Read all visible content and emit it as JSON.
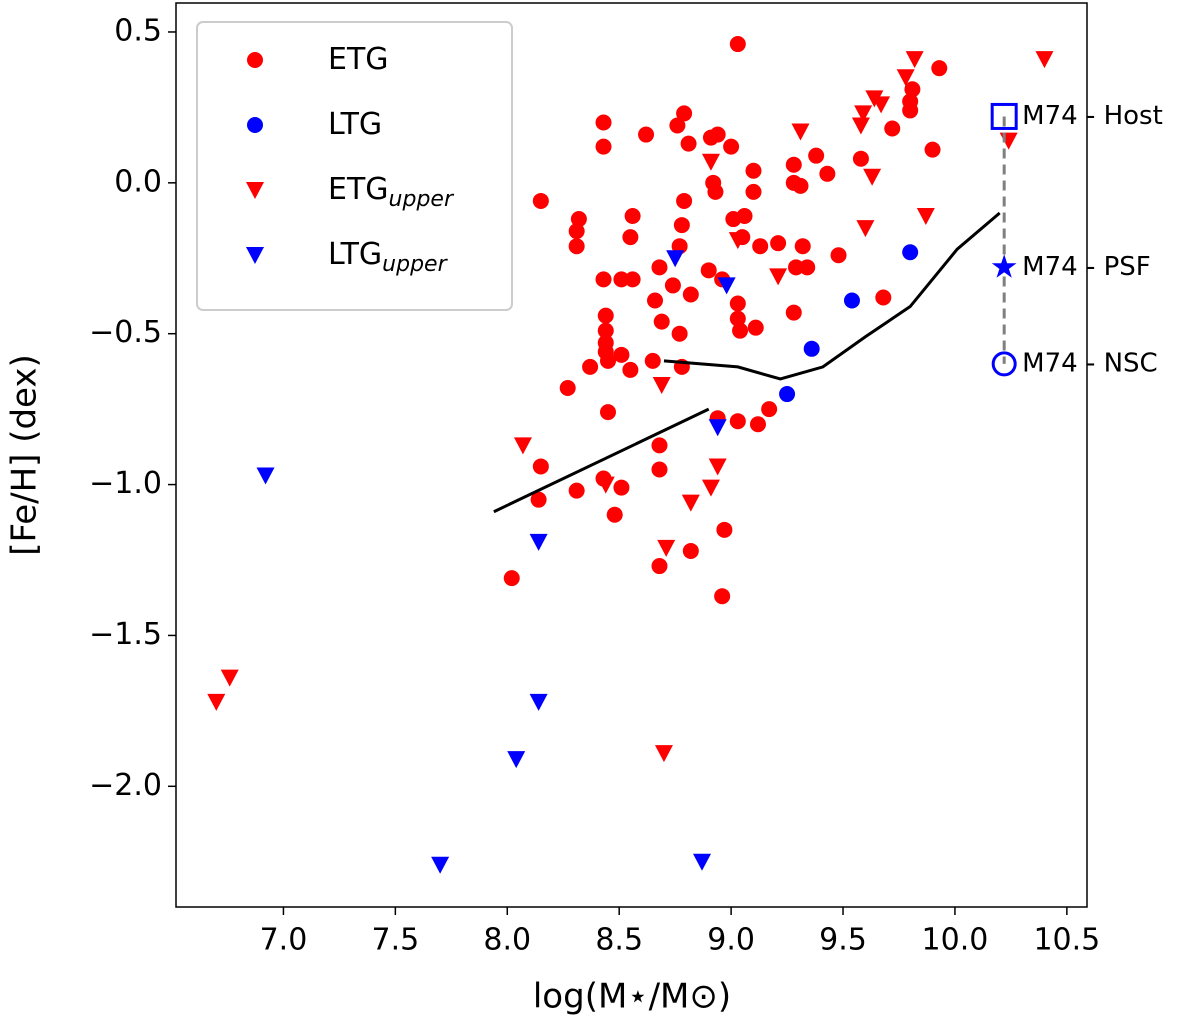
{
  "chart_data": {
    "type": "scatter",
    "xlabel": "log(M⋆/M⊙)",
    "ylabel": "[Fe/H] (dex)",
    "xlim": [
      6.52,
      10.59
    ],
    "ylim": [
      -2.4,
      0.596
    ],
    "xticks": [
      {
        "value": 7.0,
        "label": "7.0"
      },
      7.5,
      {
        "value": 8.0,
        "label": "8.0"
      },
      8.5,
      {
        "value": 9.0,
        "label": "9.0"
      },
      9.5,
      {
        "value": 10.0,
        "label": "10.0"
      },
      10.5
    ],
    "yticks": [
      0.5,
      {
        "value": 0.0,
        "label": "0.0"
      },
      {
        "value": -0.5,
        "label": "−0.5"
      },
      {
        "value": -1.0,
        "label": "−1.0"
      },
      {
        "value": -1.5,
        "label": "−1.5"
      },
      {
        "value": -2.0,
        "label": "−2.0"
      }
    ],
    "legend": "upper left",
    "series": [
      {
        "name": "ETG",
        "color": "#ff0000",
        "marker": "circle",
        "x": [
          9.03,
          9.93,
          8.43,
          8.43,
          8.62,
          8.79,
          8.76,
          8.81,
          8.91,
          8.94,
          9.0,
          8.92,
          8.93,
          9.1,
          9.1,
          9.38,
          9.28,
          9.28,
          9.31,
          9.43,
          9.58,
          9.72,
          9.8,
          9.8,
          9.81,
          9.9,
          8.15,
          8.32,
          8.31,
          8.31,
          8.56,
          8.55,
          8.79,
          8.78,
          8.77,
          8.56,
          8.43,
          8.51,
          8.68,
          8.74,
          8.9,
          8.96,
          9.01,
          9.06,
          9.05,
          9.21,
          9.13,
          9.32,
          9.29,
          9.34,
          9.48,
          9.03,
          9.03,
          9.04,
          9.11,
          9.28,
          8.82,
          8.66,
          8.69,
          8.77,
          8.44,
          8.44,
          8.44,
          8.44,
          8.45,
          8.37,
          8.55,
          8.65,
          8.78,
          8.51,
          8.27,
          8.45,
          9.68,
          9.17,
          9.12,
          9.03,
          8.94,
          8.68,
          8.68,
          8.15,
          8.31,
          8.14,
          8.43,
          8.51,
          8.48,
          8.97,
          8.82,
          8.68,
          8.02,
          8.96
        ],
        "values": [
          0.46,
          0.38,
          0.2,
          0.12,
          0.16,
          0.23,
          0.19,
          0.13,
          0.15,
          0.16,
          0.12,
          0.0,
          -0.03,
          0.04,
          -0.03,
          0.09,
          0.06,
          0.0,
          -0.01,
          0.03,
          0.08,
          0.18,
          0.24,
          0.27,
          0.31,
          0.11,
          -0.06,
          -0.12,
          -0.16,
          -0.21,
          -0.11,
          -0.18,
          -0.06,
          -0.14,
          -0.21,
          -0.32,
          -0.32,
          -0.32,
          -0.28,
          -0.34,
          -0.29,
          -0.32,
          -0.12,
          -0.11,
          -0.18,
          -0.2,
          -0.21,
          -0.21,
          -0.28,
          -0.28,
          -0.24,
          -0.4,
          -0.45,
          -0.49,
          -0.48,
          -0.43,
          -0.37,
          -0.39,
          -0.46,
          -0.5,
          -0.44,
          -0.49,
          -0.53,
          -0.56,
          -0.59,
          -0.61,
          -0.62,
          -0.59,
          -0.61,
          -0.57,
          -0.68,
          -0.76,
          -0.38,
          -0.75,
          -0.8,
          -0.79,
          -0.78,
          -0.87,
          -0.95,
          -0.94,
          -1.02,
          -1.05,
          -0.98,
          -1.01,
          -1.1,
          -1.15,
          -1.22,
          -1.27,
          -1.31,
          -1.37
        ]
      },
      {
        "name": "LTG",
        "color": "#0000ff",
        "marker": "circle",
        "x": [
          9.8,
          9.54,
          9.36,
          9.25
        ],
        "values": [
          -0.23,
          -0.39,
          -0.55,
          -0.7
        ]
      },
      {
        "name": "ETG",
        "subscript": "upper",
        "color": "#ff0000",
        "marker": "triangle-down",
        "x": [
          10.4,
          9.82,
          9.78,
          9.64,
          9.67,
          9.59,
          9.58,
          9.31,
          8.91,
          9.63,
          10.24,
          9.6,
          9.87,
          9.03,
          9.21,
          8.69,
          8.07,
          8.44,
          8.94,
          8.91,
          8.82,
          8.71,
          8.7,
          6.7,
          6.76
        ],
        "values": [
          0.41,
          0.41,
          0.35,
          0.28,
          0.26,
          0.23,
          0.19,
          0.17,
          0.07,
          0.02,
          0.14,
          -0.15,
          -0.11,
          -0.19,
          -0.31,
          -0.67,
          -0.87,
          -1.0,
          -0.94,
          -1.01,
          -1.06,
          -1.21,
          -1.89,
          -1.72,
          -1.64
        ]
      },
      {
        "name": "LTG",
        "subscript": "upper",
        "color": "#0000ff",
        "marker": "triangle-down",
        "x": [
          6.92,
          8.75,
          8.98,
          8.94,
          8.14,
          8.14,
          8.04,
          7.7,
          8.87
        ],
        "values": [
          -0.97,
          -0.25,
          -0.34,
          -0.81,
          -1.19,
          -1.72,
          -1.91,
          -2.26,
          -2.25
        ]
      },
      {
        "color": "#000000",
        "marker": "line",
        "x": [
          7.94,
          8.9
        ],
        "values": [
          -1.09,
          -0.75
        ]
      },
      {
        "color": "#000000",
        "marker": "line",
        "x": [
          8.7,
          9.03,
          9.22,
          9.41,
          9.6,
          9.8,
          10.01,
          10.2
        ],
        "values": [
          -0.59,
          -0.61,
          -0.65,
          -0.61,
          -0.51,
          -0.41,
          -0.22,
          -0.1
        ]
      },
      {
        "color": "#808080",
        "marker": "dashed",
        "marker_color": "#0000ff",
        "x": [
          10.22,
          10.22,
          10.22
        ],
        "values": [
          0.22,
          -0.28,
          -0.6
        ],
        "markers": [
          "square",
          "star",
          "circle-open"
        ],
        "point_labels": [
          "M74 - Host",
          "M74 - PSF",
          "M74 - NSC"
        ]
      }
    ]
  }
}
